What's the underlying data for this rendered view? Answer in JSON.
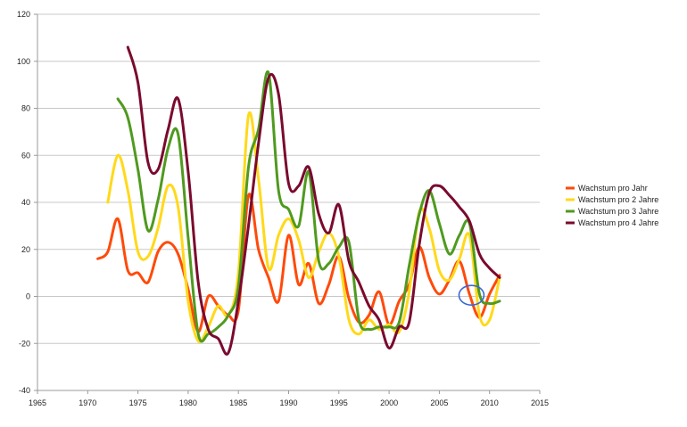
{
  "chart_data": {
    "type": "line",
    "title": "",
    "xlabel": "",
    "ylabel": "",
    "xlim": [
      1965,
      2015
    ],
    "ylim": [
      -40,
      120
    ],
    "x_ticks": [
      1965,
      1970,
      1975,
      1980,
      1985,
      1990,
      1995,
      2000,
      2005,
      2010,
      2015
    ],
    "y_ticks": [
      -40,
      -20,
      0,
      20,
      40,
      60,
      80,
      100,
      120
    ],
    "grid": "horizontal",
    "legend_position": "right",
    "series": [
      {
        "name": "Wachstum pro Jahr",
        "color": "#ff4a0a",
        "x": [
          1971,
          1972,
          1973,
          1974,
          1975,
          1976,
          1977,
          1978,
          1979,
          1980,
          1981,
          1982,
          1983,
          1984,
          1985,
          1986,
          1987,
          1988,
          1989,
          1990,
          1991,
          1992,
          1993,
          1994,
          1995,
          1996,
          1997,
          1998,
          1999,
          2000,
          2001,
          2002,
          2003,
          2004,
          2005,
          2006,
          2007,
          2008,
          2009,
          2010,
          2011
        ],
        "values": [
          16,
          19,
          33,
          11,
          10,
          6,
          19,
          23,
          18,
          3,
          -15,
          0,
          -4,
          -8,
          -6,
          43,
          20,
          8,
          -2,
          26,
          5,
          14,
          -3,
          5,
          17,
          -1,
          -11,
          -8,
          2,
          -12,
          -2,
          5,
          21,
          8,
          1,
          7,
          15,
          1,
          -9,
          1,
          9
        ]
      },
      {
        "name": "Wachstum pro 2 Jahre",
        "color": "#ffd91a",
        "x": [
          1972,
          1973,
          1974,
          1975,
          1976,
          1977,
          1978,
          1979,
          1980,
          1981,
          1982,
          1983,
          1984,
          1985,
          1986,
          1987,
          1988,
          1989,
          1990,
          1991,
          1992,
          1993,
          1994,
          1995,
          1996,
          1997,
          1998,
          1999,
          2000,
          2001,
          2002,
          2003,
          2004,
          2005,
          2006,
          2007,
          2008,
          2009,
          2010,
          2011
        ],
        "values": [
          40,
          60,
          45,
          19,
          17,
          29,
          47,
          38,
          -2,
          -19,
          -13,
          -4,
          -8,
          10,
          77,
          50,
          12,
          26,
          33,
          24,
          8,
          19,
          27,
          17,
          -10,
          -16,
          -10,
          -14,
          -12,
          -15,
          2,
          36,
          29,
          11,
          7,
          16,
          26,
          -8,
          -10,
          8
        ]
      },
      {
        "name": "Wachstum pro 3 Jahre",
        "color": "#4f9a1f",
        "x": [
          1973,
          1974,
          1975,
          1976,
          1977,
          1978,
          1979,
          1980,
          1981,
          1982,
          1983,
          1984,
          1985,
          1986,
          1987,
          1988,
          1989,
          1990,
          1991,
          1992,
          1993,
          1994,
          1995,
          1996,
          1997,
          1998,
          1999,
          2000,
          2001,
          2002,
          2003,
          2004,
          2005,
          2006,
          2007,
          2008,
          2009,
          2010,
          2011
        ],
        "values": [
          84,
          76,
          54,
          28,
          41,
          63,
          69,
          25,
          -16,
          -16,
          -13,
          -8,
          4,
          55,
          71,
          95,
          45,
          37,
          30,
          53,
          15,
          14,
          21,
          23,
          -10,
          -14,
          -13,
          -13,
          -11,
          13,
          35,
          45,
          31,
          18,
          26,
          31,
          1,
          -3,
          -2
        ]
      },
      {
        "name": "Wachstum pro 4 Jahre",
        "color": "#7a0a2e",
        "x": [
          1974,
          1975,
          1976,
          1977,
          1978,
          1979,
          1980,
          1981,
          1982,
          1983,
          1984,
          1985,
          1986,
          1987,
          1988,
          1989,
          1990,
          1991,
          1992,
          1993,
          1994,
          1995,
          1996,
          1997,
          1998,
          1999,
          2000,
          2001,
          2002,
          2003,
          2004,
          2005,
          2006,
          2007,
          2008,
          2009,
          2010,
          2011
        ],
        "values": [
          106,
          91,
          57,
          54,
          71,
          84,
          53,
          6,
          -14,
          -18,
          -24,
          -2,
          30,
          65,
          93,
          86,
          48,
          47,
          55,
          35,
          27,
          39,
          15,
          6,
          -4,
          -10,
          -22,
          -13,
          -11,
          22,
          44,
          47,
          43,
          38,
          32,
          18,
          12,
          8
        ]
      }
    ],
    "annotations": [
      {
        "type": "ellipse",
        "color": "#3a67d6",
        "x": 2008.2,
        "y": 0.5
      }
    ]
  }
}
